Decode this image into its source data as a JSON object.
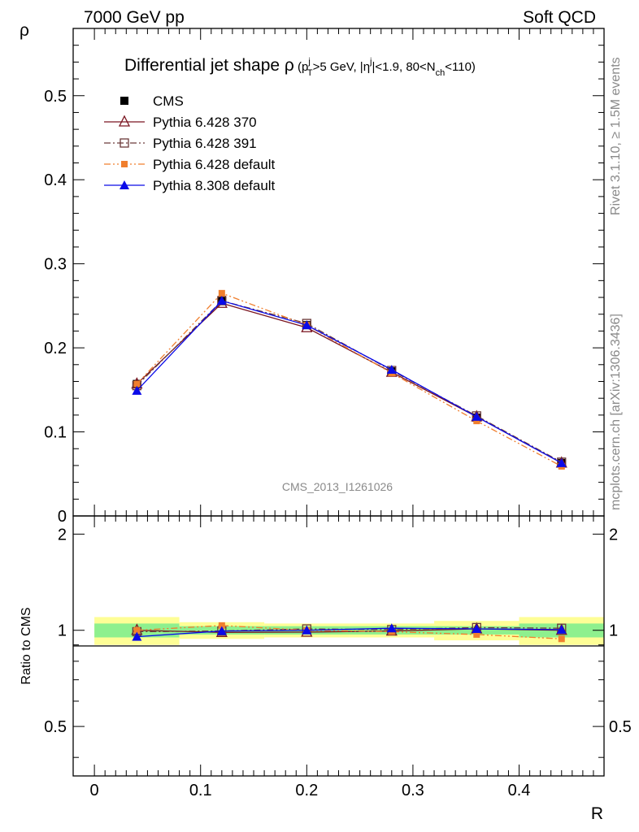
{
  "header": {
    "energy": "7000 GeV pp",
    "category": "Soft QCD"
  },
  "side_labels": {
    "rivet": "Rivet 3.1.10, ≥ 1.5M events",
    "mcplots": "mcplots.cern.ch [arXiv:1306.3436]"
  },
  "analysis_id": "CMS_2013_I1261026",
  "chart_data": [
    {
      "type": "line",
      "title": "Differential jet shape ρ (p_T^j > 5 GeV, |η^j| < 1.9, 80 < N_ch < 110)",
      "title_main": "Differential jet shape ",
      "title_rho": "ρ",
      "ylabel": "ρ",
      "xlabel": "",
      "xlim": [
        -0.02,
        0.48
      ],
      "ylim": [
        0,
        0.58
      ],
      "yticks": [
        "0",
        "0.1",
        "0.2",
        "0.3",
        "0.4",
        "0.5"
      ],
      "legend_position": "top-left",
      "x": [
        0.04,
        0.12,
        0.2,
        0.28,
        0.36,
        0.44
      ],
      "series": [
        {
          "name": "CMS",
          "color": "#000000",
          "marker": "filled-square",
          "dash": "none",
          "values": [
            0.157,
            0.257,
            0.227,
            0.172,
            0.117,
            0.063
          ]
        },
        {
          "name": "Pythia 6.428 370",
          "color": "#7a1520",
          "marker": "open-triangle",
          "dash": "solid",
          "values": [
            0.157,
            0.253,
            0.224,
            0.171,
            0.118,
            0.063
          ]
        },
        {
          "name": "Pythia 6.428 391",
          "color": "#6b3a3a",
          "marker": "open-square",
          "dash": "dashdot",
          "values": [
            0.155,
            0.256,
            0.229,
            0.173,
            0.119,
            0.064
          ]
        },
        {
          "name": "Pythia 6.428 default",
          "color": "#f07f2e",
          "marker": "filled-square-small",
          "dash": "dashdotdot",
          "values": [
            0.157,
            0.265,
            0.227,
            0.17,
            0.113,
            0.059
          ]
        },
        {
          "name": "Pythia 8.308 default",
          "color": "#0a0ae8",
          "marker": "filled-triangle",
          "dash": "solid",
          "values": [
            0.149,
            0.256,
            0.227,
            0.174,
            0.118,
            0.063
          ]
        }
      ]
    },
    {
      "type": "line",
      "title": "",
      "ylabel": "Ratio to CMS",
      "xlabel": "R",
      "xlim": [
        -0.02,
        0.48
      ],
      "ylim": [
        0.35,
        2.28
      ],
      "yticks": [
        "0.5",
        "1",
        "2"
      ],
      "xticks": [
        "0",
        "0.1",
        "0.2",
        "0.3",
        "0.4"
      ],
      "bins": [
        [
          0.0,
          0.08
        ],
        [
          0.08,
          0.16
        ],
        [
          0.16,
          0.24
        ],
        [
          0.24,
          0.32
        ],
        [
          0.32,
          0.4
        ],
        [
          0.4,
          0.48
        ]
      ],
      "band_inner": [
        0.05,
        0.03,
        0.03,
        0.03,
        0.03,
        0.05
      ],
      "band_outer": [
        0.1,
        0.06,
        0.05,
        0.05,
        0.07,
        0.1
      ],
      "band_colors": {
        "inner": "#8ef08e",
        "outer": "#fefe96"
      },
      "x": [
        0.04,
        0.12,
        0.2,
        0.28,
        0.36,
        0.44
      ],
      "series": [
        {
          "name": "Pythia 6.428 370",
          "values": [
            1.0,
            0.985,
            0.987,
            0.995,
            1.01,
            1.0
          ]
        },
        {
          "name": "Pythia 6.428 391",
          "values": [
            0.99,
            0.995,
            1.01,
            1.005,
            1.02,
            1.015
          ]
        },
        {
          "name": "Pythia 6.428 default",
          "values": [
            1.0,
            1.035,
            1.0,
            0.99,
            0.97,
            0.94
          ]
        },
        {
          "name": "Pythia 8.308 default",
          "values": [
            0.955,
            0.995,
            1.0,
            1.015,
            1.01,
            1.005
          ]
        }
      ]
    }
  ]
}
